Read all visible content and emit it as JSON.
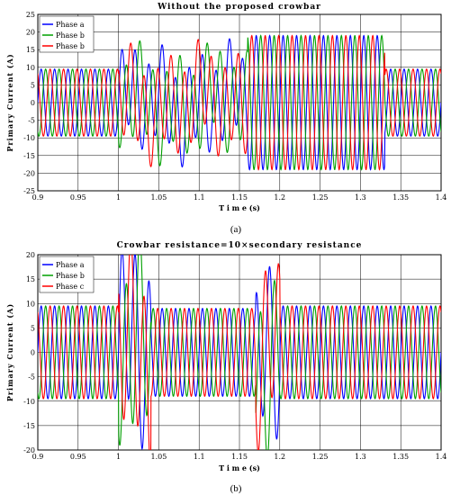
{
  "chart_data": [
    {
      "type": "line",
      "title": "Without the proposed crowbar",
      "xlabel": "T i m e (s)",
      "ylabel": "Primary  Current  (A)",
      "xlim": [
        0.9,
        1.4
      ],
      "ylim": [
        -25,
        25
      ],
      "xticks": [
        "0.9",
        "0.95",
        "1",
        "1.05",
        "1.1",
        "1.15",
        "1.2",
        "1.25",
        "1.3",
        "1.35",
        "1.4"
      ],
      "yticks": [
        "25",
        "20",
        "15",
        "10",
        "5",
        "0",
        "-5",
        "-10",
        "-15",
        "-20",
        "-25"
      ],
      "grid": true,
      "legend": "top-left",
      "series": [
        {
          "name": "Phase a",
          "color": "#0000ff",
          "phase_deg": 0
        },
        {
          "name": "Phase b",
          "color": "#00a000",
          "phase_deg": -120
        },
        {
          "name": "Phase b",
          "color": "#ff0000",
          "phase_deg": 120
        }
      ],
      "frequency_hz": 60,
      "segments": [
        {
          "t_start": 0.9,
          "t_end": 1.0,
          "amplitude": 9.5
        },
        {
          "t_start": 1.0,
          "t_end": 1.16,
          "amplitude": 12,
          "disturbed": true
        },
        {
          "t_start": 1.16,
          "t_end": 1.33,
          "amplitude": 19
        },
        {
          "t_start": 1.33,
          "t_end": 1.4,
          "amplitude": 9.5
        }
      ],
      "caption": "(a)"
    },
    {
      "type": "line",
      "title": "Crowbar  resistance=10×secondary  resistance",
      "xlabel": "T i m e (s)",
      "ylabel": "Primary  Current  (A)",
      "xlim": [
        0.9,
        1.4
      ],
      "ylim": [
        -20,
        20
      ],
      "xticks": [
        "0.9",
        "0.95",
        "1",
        "1.05",
        "1.1",
        "1.15",
        "1.2",
        "1.25",
        "1.3",
        "1.35",
        "1.4"
      ],
      "yticks": [
        "20",
        "15",
        "10",
        "5",
        "0",
        "-5",
        "-10",
        "-15",
        "-20"
      ],
      "grid": true,
      "legend": "top-left",
      "series": [
        {
          "name": "Phase a",
          "color": "#0000ff",
          "phase_deg": 0
        },
        {
          "name": "Phase b",
          "color": "#00a000",
          "phase_deg": -120
        },
        {
          "name": "Phase c",
          "color": "#ff0000",
          "phase_deg": 120
        }
      ],
      "frequency_hz": 60,
      "segments": [
        {
          "t_start": 0.9,
          "t_end": 1.0,
          "amplitude": 9.5
        },
        {
          "t_start": 1.0,
          "t_end": 1.04,
          "amplitude": 17,
          "disturbed": true
        },
        {
          "t_start": 1.04,
          "t_end": 1.17,
          "amplitude": 9
        },
        {
          "t_start": 1.17,
          "t_end": 1.2,
          "amplitude": 15,
          "disturbed": true
        },
        {
          "t_start": 1.2,
          "t_end": 1.4,
          "amplitude": 9.5
        }
      ],
      "caption": "(b)"
    }
  ]
}
